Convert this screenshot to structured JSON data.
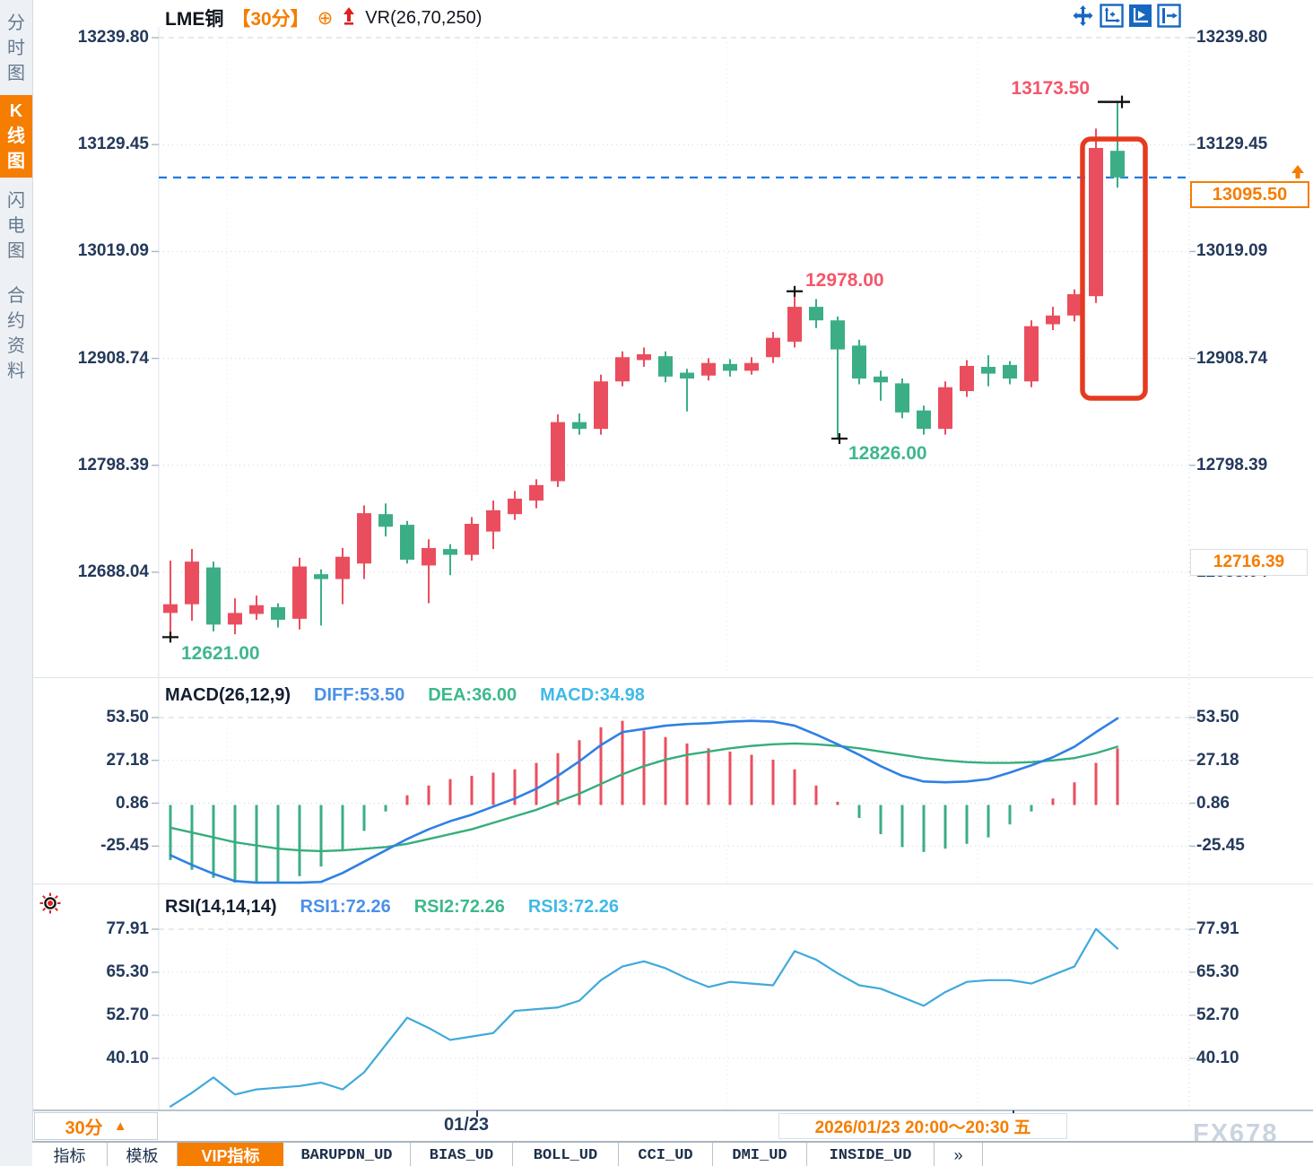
{
  "header": {
    "symbol": "LME铜",
    "period": "【30分】",
    "indicator": "VR(26,70,250)",
    "circle_plus": "⊕"
  },
  "sidebar": {
    "items": [
      {
        "label": "分时图",
        "active": false
      },
      {
        "label": "K线图",
        "active": true
      },
      {
        "label": "闪电图",
        "active": false
      },
      {
        "label": "合约资料",
        "active": false
      }
    ]
  },
  "toolbar": {
    "icons": [
      "pan-icon",
      "axis-scale-icon",
      "axis-play-icon",
      "jump-right-icon"
    ]
  },
  "price_axis": {
    "labels": [
      "13239.80",
      "13129.45",
      "13019.09",
      "12908.74",
      "12798.39",
      "12688.04"
    ]
  },
  "annotations": {
    "high_label": "13173.50",
    "peak_label": "12978.00",
    "low_label": "12826.00",
    "start_low_label": "12621.00",
    "current_price": "13095.50",
    "prev_close": "12716.39"
  },
  "macd": {
    "title": "MACD(26,12,9)",
    "diff_label": "DIFF:53.50",
    "dea_label": "DEA:36.00",
    "macd_label": "MACD:34.98",
    "axis": [
      "53.50",
      "27.18",
      "0.86",
      "-25.45"
    ]
  },
  "rsi": {
    "title": "RSI(14,14,14)",
    "rsi1_label": "RSI1:72.26",
    "rsi2_label": "RSI2:72.26",
    "rsi3_label": "RSI3:72.26",
    "axis": [
      "77.91",
      "65.30",
      "52.70",
      "40.10"
    ]
  },
  "time_axis": {
    "date_label": "01/23",
    "range_label": "2026/01/23 20:00～20:30 五",
    "period_label": "30分",
    "period_arrow": "▲"
  },
  "tabs": [
    {
      "label": "指标",
      "active": false,
      "mono": false
    },
    {
      "label": "模板",
      "active": false,
      "mono": false
    },
    {
      "label": "VIP指标",
      "active": true,
      "mono": false
    },
    {
      "label": "BARUPDN_UD",
      "active": false,
      "mono": true
    },
    {
      "label": "BIAS_UD",
      "active": false,
      "mono": true
    },
    {
      "label": "BOLL_UD",
      "active": false,
      "mono": true
    },
    {
      "label": "CCI_UD",
      "active": false,
      "mono": true
    },
    {
      "label": "DMI_UD",
      "active": false,
      "mono": true
    },
    {
      "label": "INSIDE_UD",
      "active": false,
      "mono": true
    },
    {
      "label": "»",
      "active": false,
      "mono": false
    }
  ],
  "watermark": "FX678",
  "colors": {
    "up": "#ea4e5e",
    "down": "#3bae85",
    "orange": "#f57d00",
    "navy": "#24395b",
    "diff_line": "#2f80e4",
    "dea_line": "#36ad7c",
    "rsi_line": "#3fa9dc",
    "dashed_price_line": "#1d7be5",
    "highlight_box": "#e63a20"
  },
  "chart_data": [
    {
      "type": "candlestick",
      "name": "LME copper 30-min",
      "y_ticks": [
        13239.8,
        13129.45,
        13019.09,
        12908.74,
        12798.39,
        12688.04
      ],
      "current_price": 13095.5,
      "prev_close_level": 12716.39,
      "marked_high": 13173.5,
      "marked_peak": 12978.0,
      "marked_low": 12826.0,
      "marked_start_low": 12621.0,
      "ohlc": [
        [
          12646,
          12700,
          12621,
          12655
        ],
        [
          12655,
          12712,
          12638,
          12699
        ],
        [
          12693,
          12699,
          12627,
          12634
        ],
        [
          12634,
          12661,
          12624,
          12646
        ],
        [
          12645,
          12664,
          12639,
          12654
        ],
        [
          12652,
          12656,
          12631,
          12639
        ],
        [
          12640,
          12703,
          12629,
          12694
        ],
        [
          12686,
          12691,
          12633,
          12681
        ],
        [
          12681,
          12713,
          12655,
          12704
        ],
        [
          12697,
          12757,
          12681,
          12749
        ],
        [
          12748,
          12759,
          12725,
          12735
        ],
        [
          12737,
          12741,
          12697,
          12701
        ],
        [
          12695,
          12722,
          12656,
          12713
        ],
        [
          12712,
          12717,
          12685,
          12706
        ],
        [
          12706,
          12745,
          12700,
          12738
        ],
        [
          12730,
          12762,
          12712,
          12752
        ],
        [
          12748,
          12772,
          12742,
          12764
        ],
        [
          12762,
          12784,
          12754,
          12778
        ],
        [
          12782,
          12851,
          12776,
          12843
        ],
        [
          12843,
          12852,
          12830,
          12836
        ],
        [
          12836,
          12892,
          12830,
          12885
        ],
        [
          12885,
          12916,
          12880,
          12910
        ],
        [
          12907,
          12920,
          12900,
          12913
        ],
        [
          12911,
          12916,
          12884,
          12890
        ],
        [
          12894,
          12898,
          12854,
          12888
        ],
        [
          12891,
          12909,
          12886,
          12904
        ],
        [
          12903,
          12908,
          12890,
          12896
        ],
        [
          12896,
          12910,
          12892,
          12904
        ],
        [
          12910,
          12936,
          12904,
          12930
        ],
        [
          12926,
          12978,
          12920,
          12962
        ],
        [
          12962,
          12970,
          12940,
          12948
        ],
        [
          12948,
          12952,
          12826,
          12918
        ],
        [
          12922,
          12928,
          12882,
          12888
        ],
        [
          12890,
          12896,
          12865,
          12884
        ],
        [
          12883,
          12888,
          12847,
          12853
        ],
        [
          12855,
          12860,
          12830,
          12836
        ],
        [
          12836,
          12885,
          12830,
          12879
        ],
        [
          12875,
          12907,
          12869,
          12901
        ],
        [
          12900,
          12912,
          12880,
          12893
        ],
        [
          12902,
          12906,
          12882,
          12888
        ],
        [
          12885,
          12948,
          12879,
          12942
        ],
        [
          12944,
          12962,
          12938,
          12953
        ],
        [
          12953,
          12980,
          12947,
          12975
        ],
        [
          12973,
          13146,
          12966,
          13126
        ],
        [
          13123,
          13173.5,
          13085,
          13095.5
        ]
      ]
    },
    {
      "type": "macd",
      "params": "(26,12,9)",
      "y_ticks": [
        53.5,
        27.18,
        0.86,
        -25.45
      ],
      "diff": [
        -31,
        -37,
        -42.5,
        -47,
        -50,
        -51,
        -50,
        -47.5,
        -42,
        -35,
        -28,
        -21,
        -15,
        -10,
        -6,
        -1,
        4,
        10,
        18,
        27,
        37,
        45,
        47,
        49,
        50,
        50.5,
        51.5,
        52,
        51.5,
        49,
        43.5,
        37.5,
        31,
        24,
        18,
        14.5,
        14,
        14.5,
        16,
        20,
        24.5,
        29.5,
        36,
        45,
        53.5
      ],
      "dea": [
        -14,
        -17,
        -20,
        -23,
        -25,
        -27,
        -28,
        -28.5,
        -28,
        -27,
        -26,
        -24,
        -21,
        -18,
        -15,
        -11,
        -7,
        -3,
        2,
        7,
        13,
        19,
        24,
        28,
        31,
        33,
        35,
        36.5,
        37.5,
        38,
        37.5,
        36.5,
        35,
        33,
        31,
        29,
        27.5,
        26.5,
        26,
        26,
        26.5,
        27.5,
        29,
        32,
        36
      ],
      "hist_rule": "2*(diff-dea)"
    },
    {
      "type": "line",
      "name": "RSI(14,14,14)",
      "y_ticks": [
        77.91,
        65.3,
        52.7,
        40.1
      ],
      "values": [
        26,
        30,
        34.5,
        29.5,
        31,
        31.5,
        32,
        33,
        31,
        36,
        44,
        52,
        49,
        45.5,
        46.5,
        47.5,
        54,
        54.5,
        55,
        57,
        63,
        67,
        68.5,
        66.5,
        63.5,
        61,
        62.5,
        62,
        61.5,
        71.5,
        69,
        65,
        61.5,
        60.5,
        58,
        55.5,
        59.5,
        62.5,
        63,
        63,
        62,
        64.5,
        67,
        78,
        72.26
      ]
    }
  ]
}
